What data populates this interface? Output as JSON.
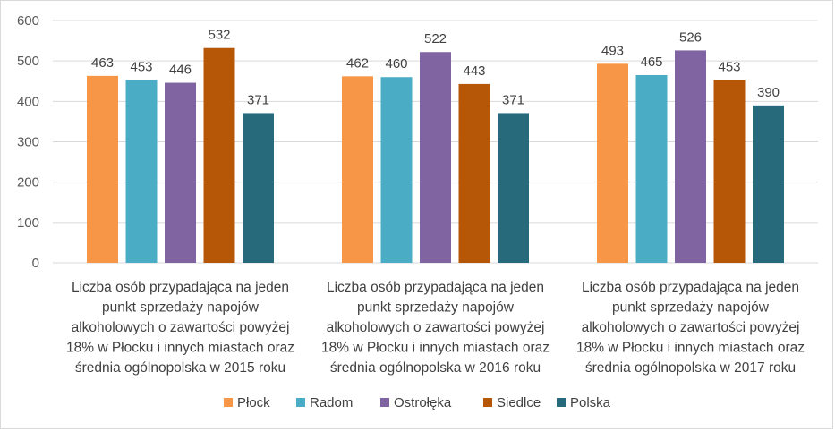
{
  "chart_data": {
    "type": "bar",
    "title": "",
    "xlabel": "",
    "ylabel": "",
    "ylim": [
      0,
      600
    ],
    "yticks": [
      0,
      100,
      200,
      300,
      400,
      500,
      600
    ],
    "grid": true,
    "legend_position": "bottom",
    "categories": [
      [
        "Liczba osób  przypadająca na jeden",
        "punkt sprzedaży napojów",
        "alkoholowych o zawartości powyżej",
        "18% w Płocku i innych miastach oraz",
        "średnia ogólnopolska w 2015 roku"
      ],
      [
        "Liczba osób  przypadająca na jeden",
        "punkt sprzedaży napojów",
        "alkoholowych o zawartości powyżej",
        "18% w Płocku i innych miastach oraz",
        "średnia ogólnopolska w 2016 roku"
      ],
      [
        "Liczba osób  przypadająca na jeden",
        "punkt sprzedaży napojów",
        "alkoholowych o zawartości powyżej",
        "18% w Płocku i innych miastach oraz",
        "średnia ogólnopolska w 2017 roku"
      ]
    ],
    "series": [
      {
        "name": "Płock",
        "color": "#F79646",
        "values": [
          463,
          462,
          493
        ]
      },
      {
        "name": "Radom",
        "color": "#4BACC6",
        "values": [
          453,
          460,
          465
        ]
      },
      {
        "name": "Ostrołęka",
        "color": "#8064A2",
        "values": [
          446,
          522,
          526
        ]
      },
      {
        "name": "Siedlce",
        "color": "#B65708",
        "values": [
          532,
          443,
          453
        ]
      },
      {
        "name": "Polska",
        "color": "#276A7C",
        "values": [
          371,
          371,
          390
        ]
      }
    ]
  }
}
